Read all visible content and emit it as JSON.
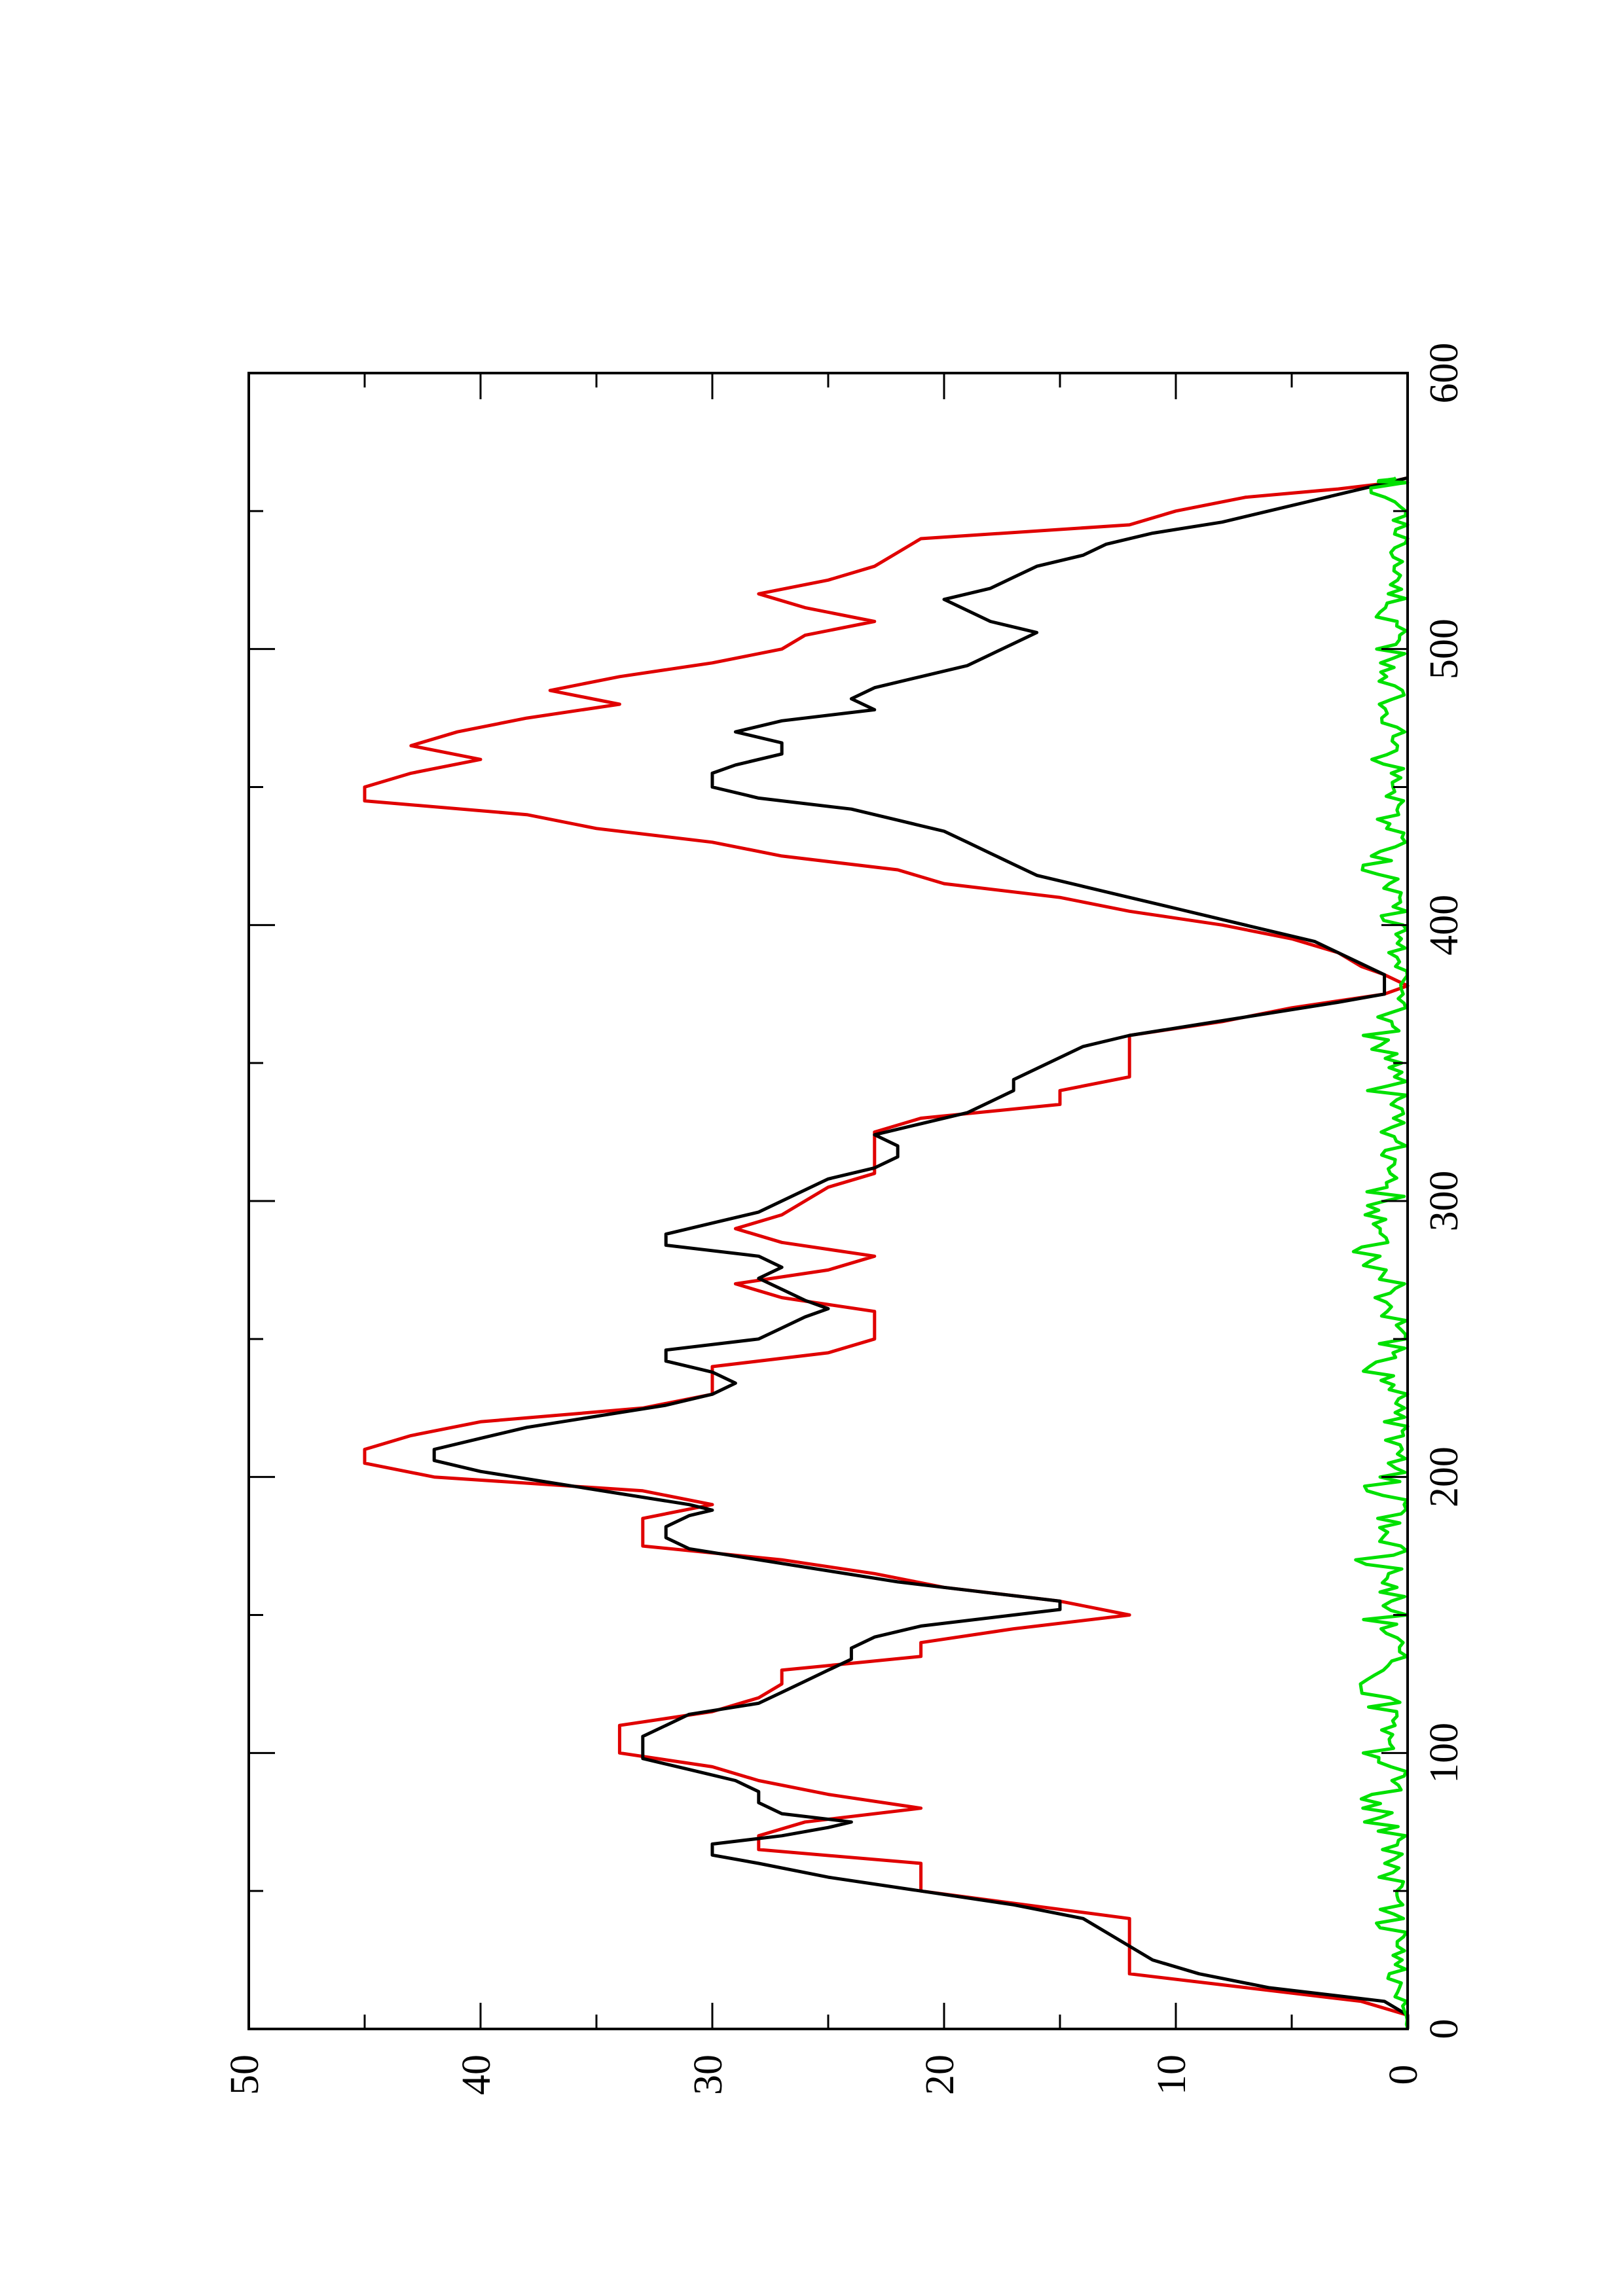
{
  "chart_data": {
    "type": "line",
    "orientation": "rotated-90-ccw",
    "title": "",
    "xlabel": "",
    "ylabel": "",
    "xlim": [
      0,
      600
    ],
    "ylim": [
      0,
      50
    ],
    "x_ticks": [
      0,
      100,
      200,
      300,
      400,
      500,
      600
    ],
    "x_minor_ticks": [
      50,
      150,
      250,
      350,
      450,
      550
    ],
    "y_ticks": [
      0,
      10,
      20,
      30,
      40,
      50
    ],
    "y_minor_ticks": [
      5,
      15,
      25,
      35,
      45
    ],
    "x_tick_labels": [
      "0",
      "100",
      "200",
      "300",
      "400",
      "500",
      "600"
    ],
    "y_tick_labels": [
      "0",
      "10",
      "20",
      "30",
      "40",
      "50"
    ],
    "grid": false,
    "legend": "none",
    "series": [
      {
        "color": "#e00000",
        "step": true,
        "points": [
          [
            0,
            0
          ],
          [
            5,
            0
          ],
          [
            10,
            2
          ],
          [
            20,
            12
          ],
          [
            40,
            12
          ],
          [
            50,
            21
          ],
          [
            60,
            21
          ],
          [
            65,
            28
          ],
          [
            70,
            28
          ],
          [
            75,
            26
          ],
          [
            80,
            21
          ],
          [
            85,
            25
          ],
          [
            90,
            28
          ],
          [
            95,
            30
          ],
          [
            100,
            34
          ],
          [
            110,
            34
          ],
          [
            115,
            30
          ],
          [
            120,
            28
          ],
          [
            125,
            27
          ],
          [
            130,
            27
          ],
          [
            135,
            21
          ],
          [
            140,
            21
          ],
          [
            145,
            17
          ],
          [
            150,
            12
          ],
          [
            155,
            15
          ],
          [
            160,
            20
          ],
          [
            165,
            23
          ],
          [
            170,
            27
          ],
          [
            175,
            33
          ],
          [
            185,
            33
          ],
          [
            190,
            30
          ],
          [
            195,
            33
          ],
          [
            200,
            42
          ],
          [
            205,
            45
          ],
          [
            210,
            45
          ],
          [
            215,
            43
          ],
          [
            220,
            40
          ],
          [
            225,
            33
          ],
          [
            230,
            30
          ],
          [
            240,
            30
          ],
          [
            245,
            25
          ],
          [
            250,
            23
          ],
          [
            260,
            23
          ],
          [
            265,
            27
          ],
          [
            270,
            29
          ],
          [
            275,
            25
          ],
          [
            280,
            23
          ],
          [
            285,
            27
          ],
          [
            290,
            29
          ],
          [
            295,
            27
          ],
          [
            300,
            26
          ],
          [
            305,
            25
          ],
          [
            310,
            23
          ],
          [
            325,
            23
          ],
          [
            330,
            21
          ],
          [
            335,
            15
          ],
          [
            340,
            15
          ],
          [
            345,
            12
          ],
          [
            360,
            12
          ],
          [
            365,
            8
          ],
          [
            370,
            5
          ],
          [
            375,
            1
          ],
          [
            378,
            0
          ],
          [
            382,
            1
          ],
          [
            385,
            2
          ],
          [
            390,
            3
          ],
          [
            395,
            5
          ],
          [
            400,
            8
          ],
          [
            405,
            12
          ],
          [
            410,
            15
          ],
          [
            415,
            20
          ],
          [
            420,
            22
          ],
          [
            425,
            27
          ],
          [
            430,
            30
          ],
          [
            435,
            35
          ],
          [
            440,
            38
          ],
          [
            445,
            45
          ],
          [
            450,
            45
          ],
          [
            455,
            43
          ],
          [
            460,
            40
          ],
          [
            465,
            43
          ],
          [
            470,
            41
          ],
          [
            475,
            38
          ],
          [
            480,
            34
          ],
          [
            485,
            37
          ],
          [
            490,
            34
          ],
          [
            495,
            30
          ],
          [
            500,
            27
          ],
          [
            505,
            26
          ],
          [
            510,
            23
          ],
          [
            515,
            26
          ],
          [
            520,
            28
          ],
          [
            525,
            25
          ],
          [
            530,
            23
          ],
          [
            535,
            22
          ],
          [
            540,
            21
          ],
          [
            545,
            12
          ],
          [
            550,
            10
          ],
          [
            555,
            7
          ],
          [
            558,
            3
          ],
          [
            560,
            1
          ],
          [
            562,
            0
          ]
        ]
      },
      {
        "color": "#000000",
        "step": false,
        "points": [
          [
            0,
            0
          ],
          [
            5,
            0
          ],
          [
            10,
            1
          ],
          [
            15,
            6
          ],
          [
            20,
            9
          ],
          [
            25,
            11
          ],
          [
            30,
            12
          ],
          [
            35,
            13
          ],
          [
            40,
            14
          ],
          [
            45,
            17
          ],
          [
            50,
            21
          ],
          [
            55,
            25
          ],
          [
            60,
            28
          ],
          [
            63,
            30
          ],
          [
            67,
            30
          ],
          [
            70,
            27
          ],
          [
            73,
            25
          ],
          [
            75,
            24
          ],
          [
            78,
            27
          ],
          [
            82,
            28
          ],
          [
            86,
            28
          ],
          [
            90,
            29
          ],
          [
            94,
            31
          ],
          [
            98,
            33
          ],
          [
            102,
            33
          ],
          [
            106,
            33
          ],
          [
            110,
            32
          ],
          [
            114,
            31
          ],
          [
            118,
            28
          ],
          [
            122,
            27
          ],
          [
            126,
            26
          ],
          [
            130,
            25
          ],
          [
            134,
            24
          ],
          [
            138,
            24
          ],
          [
            142,
            23
          ],
          [
            146,
            21
          ],
          [
            150,
            17
          ],
          [
            152,
            15
          ],
          [
            155,
            15
          ],
          [
            158,
            18
          ],
          [
            162,
            22
          ],
          [
            166,
            25
          ],
          [
            170,
            28
          ],
          [
            174,
            31
          ],
          [
            178,
            32
          ],
          [
            182,
            32
          ],
          [
            186,
            31
          ],
          [
            188,
            30
          ],
          [
            190,
            31
          ],
          [
            194,
            34
          ],
          [
            198,
            37
          ],
          [
            202,
            40
          ],
          [
            206,
            42
          ],
          [
            210,
            42
          ],
          [
            214,
            40
          ],
          [
            218,
            38
          ],
          [
            222,
            35
          ],
          [
            226,
            32
          ],
          [
            230,
            30
          ],
          [
            234,
            29
          ],
          [
            238,
            30
          ],
          [
            242,
            32
          ],
          [
            246,
            32
          ],
          [
            250,
            28
          ],
          [
            254,
            27
          ],
          [
            258,
            26
          ],
          [
            261,
            25
          ],
          [
            264,
            26
          ],
          [
            268,
            27
          ],
          [
            272,
            28
          ],
          [
            276,
            27
          ],
          [
            280,
            28
          ],
          [
            284,
            32
          ],
          [
            288,
            32
          ],
          [
            292,
            30
          ],
          [
            296,
            28
          ],
          [
            300,
            27
          ],
          [
            304,
            26
          ],
          [
            308,
            25
          ],
          [
            312,
            23
          ],
          [
            316,
            22
          ],
          [
            320,
            22
          ],
          [
            324,
            23
          ],
          [
            328,
            21
          ],
          [
            332,
            19
          ],
          [
            336,
            18
          ],
          [
            340,
            17
          ],
          [
            344,
            17
          ],
          [
            348,
            16
          ],
          [
            352,
            15
          ],
          [
            356,
            14
          ],
          [
            360,
            12
          ],
          [
            364,
            9
          ],
          [
            368,
            6
          ],
          [
            372,
            3
          ],
          [
            375,
            1
          ],
          [
            378,
            1
          ],
          [
            382,
            1
          ],
          [
            386,
            2
          ],
          [
            390,
            3
          ],
          [
            394,
            4
          ],
          [
            398,
            6
          ],
          [
            402,
            8
          ],
          [
            406,
            10
          ],
          [
            410,
            12
          ],
          [
            414,
            14
          ],
          [
            418,
            16
          ],
          [
            422,
            17
          ],
          [
            426,
            18
          ],
          [
            430,
            19
          ],
          [
            434,
            20
          ],
          [
            438,
            22
          ],
          [
            442,
            24
          ],
          [
            446,
            28
          ],
          [
            450,
            30
          ],
          [
            455,
            30
          ],
          [
            458,
            29
          ],
          [
            462,
            27
          ],
          [
            466,
            27
          ],
          [
            470,
            29
          ],
          [
            474,
            27
          ],
          [
            478,
            23
          ],
          [
            482,
            24
          ],
          [
            486,
            23
          ],
          [
            490,
            21
          ],
          [
            494,
            19
          ],
          [
            498,
            18
          ],
          [
            502,
            17
          ],
          [
            506,
            16
          ],
          [
            510,
            18
          ],
          [
            514,
            19
          ],
          [
            518,
            20
          ],
          [
            522,
            18
          ],
          [
            526,
            17
          ],
          [
            530,
            16
          ],
          [
            534,
            14
          ],
          [
            538,
            13
          ],
          [
            542,
            11
          ],
          [
            546,
            8
          ],
          [
            550,
            6
          ],
          [
            554,
            4
          ],
          [
            558,
            2
          ],
          [
            560,
            1
          ],
          [
            562,
            0
          ]
        ]
      },
      {
        "color": "#00e000",
        "step": false,
        "noise_envelope": true,
        "amplitude_max": 4,
        "points": [
          [
            0,
            0
          ],
          [
            10,
            0.5
          ],
          [
            20,
            1.2
          ],
          [
            30,
            0.8
          ],
          [
            40,
            1.5
          ],
          [
            50,
            0.7
          ],
          [
            60,
            1.8
          ],
          [
            70,
            1.0
          ],
          [
            80,
            3.2
          ],
          [
            90,
            1.5
          ],
          [
            100,
            2.0
          ],
          [
            110,
            1.2
          ],
          [
            120,
            2.8
          ],
          [
            130,
            1.4
          ],
          [
            140,
            0.9
          ],
          [
            150,
            2.2
          ],
          [
            160,
            1.0
          ],
          [
            170,
            2.5
          ],
          [
            180,
            1.3
          ],
          [
            190,
            1.8
          ],
          [
            200,
            2.4
          ],
          [
            210,
            1.0
          ],
          [
            220,
            1.6
          ],
          [
            230,
            0.8
          ],
          [
            240,
            2.3
          ],
          [
            250,
            1.2
          ],
          [
            260,
            2.0
          ],
          [
            270,
            1.1
          ],
          [
            280,
            2.6
          ],
          [
            290,
            1.5
          ],
          [
            300,
            2.2
          ],
          [
            310,
            1.0
          ],
          [
            320,
            1.4
          ],
          [
            330,
            0.9
          ],
          [
            340,
            1.8
          ],
          [
            350,
            1.1
          ],
          [
            360,
            2.3
          ],
          [
            370,
            1.0
          ],
          [
            380,
            0.5
          ],
          [
            390,
            0.9
          ],
          [
            400,
            1.5
          ],
          [
            410,
            1.0
          ],
          [
            420,
            2.2
          ],
          [
            430,
            1.1
          ],
          [
            440,
            1.4
          ],
          [
            450,
            0.8
          ],
          [
            460,
            1.6
          ],
          [
            470,
            1.0
          ],
          [
            480,
            2.0
          ],
          [
            490,
            1.2
          ],
          [
            500,
            1.5
          ],
          [
            510,
            1.3
          ],
          [
            520,
            1.8
          ],
          [
            530,
            1.0
          ],
          [
            540,
            1.2
          ],
          [
            550,
            0.9
          ],
          [
            560,
            2.0
          ],
          [
            562,
            0.5
          ]
        ]
      }
    ]
  }
}
